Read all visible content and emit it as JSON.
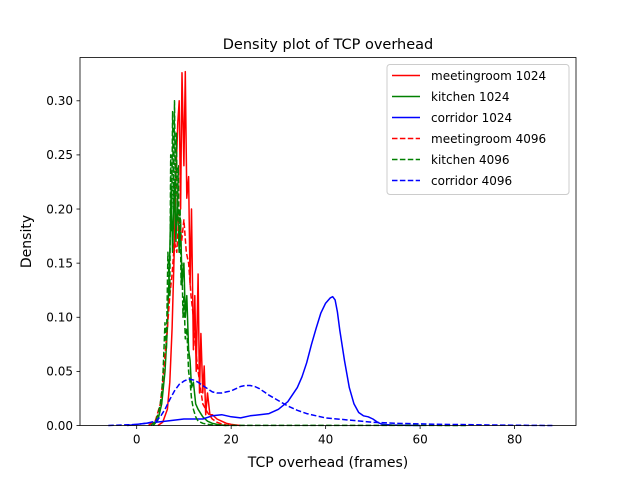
{
  "chart_data": {
    "type": "line",
    "title": "Density plot of TCP overhead",
    "xlabel": "TCP overhead (frames)",
    "ylabel": "Density",
    "xlim": [
      -12,
      93
    ],
    "ylim": [
      0,
      0.34
    ],
    "xticks": [
      0,
      20,
      40,
      60,
      80
    ],
    "yticks": [
      0.0,
      0.05,
      0.1,
      0.15,
      0.2,
      0.25,
      0.3
    ],
    "ytick_labels": [
      "0.00",
      "0.05",
      "0.10",
      "0.15",
      "0.20",
      "0.25",
      "0.30"
    ],
    "grid": false,
    "legend_position": "top-right",
    "series": [
      {
        "name": "meetingroom 1024",
        "color": "#ff0000",
        "style": "solid",
        "x": [
          4.5,
          5.5,
          6.5,
          7,
          7.5,
          8,
          8.3,
          8.7,
          9,
          9.3,
          9.6,
          10,
          10.3,
          10.6,
          11,
          11.3,
          11.6,
          12,
          12.3,
          12.6,
          13,
          13.3,
          13.6,
          14,
          14.3,
          14.6,
          15,
          15.5,
          16,
          17,
          18,
          19,
          20,
          21,
          22
        ],
        "y": [
          0,
          0.003,
          0.015,
          0.04,
          0.09,
          0.17,
          0.23,
          0.28,
          0.3,
          0.2,
          0.326,
          0.24,
          0.327,
          0.21,
          0.23,
          0.13,
          0.2,
          0.07,
          0.12,
          0.05,
          0.14,
          0.03,
          0.085,
          0.03,
          0.055,
          0.01,
          0.03,
          0.01,
          0.01,
          0.006,
          0.004,
          0.002,
          0.001,
          0.0005,
          0
        ]
      },
      {
        "name": "kitchen 1024",
        "color": "#008000",
        "style": "solid",
        "x": [
          3.5,
          4.5,
          5.3,
          6,
          6.5,
          7,
          7.3,
          7.6,
          8,
          8.3,
          8.6,
          9,
          9.3,
          9.6,
          10,
          10.3,
          10.6,
          11,
          11.3,
          11.6,
          12,
          12.5,
          13,
          14,
          15,
          16,
          17,
          18,
          19
        ],
        "y": [
          0,
          0.005,
          0.02,
          0.05,
          0.09,
          0.16,
          0.22,
          0.16,
          0.225,
          0.17,
          0.21,
          0.16,
          0.19,
          0.13,
          0.15,
          0.1,
          0.12,
          0.07,
          0.06,
          0.035,
          0.04,
          0.02,
          0.015,
          0.008,
          0.004,
          0.002,
          0.001,
          0.0005,
          0
        ]
      },
      {
        "name": "corridor 1024",
        "color": "#0000ff",
        "style": "solid",
        "x": [
          -2,
          0,
          2,
          4,
          6,
          8,
          10,
          12,
          14,
          16,
          18,
          20,
          22,
          24,
          26,
          28,
          30,
          32,
          34,
          35,
          36,
          37,
          38,
          39,
          40,
          41,
          41.5,
          42,
          42.5,
          43,
          44,
          45,
          46,
          47,
          48,
          49,
          50,
          51,
          52,
          54,
          56,
          58,
          60
        ],
        "y": [
          0,
          0.001,
          0.002,
          0.003,
          0.004,
          0.005,
          0.006,
          0.006,
          0.006,
          0.009,
          0.01,
          0.008,
          0.007,
          0.009,
          0.01,
          0.011,
          0.015,
          0.022,
          0.035,
          0.045,
          0.058,
          0.075,
          0.09,
          0.104,
          0.113,
          0.118,
          0.119,
          0.116,
          0.105,
          0.088,
          0.06,
          0.035,
          0.02,
          0.012,
          0.009,
          0.008,
          0.006,
          0.003,
          0.001,
          0.0005,
          0.0002,
          0.0001,
          0
        ]
      },
      {
        "name": "meetingroom 4096",
        "color": "#ff0000",
        "style": "dashed",
        "x": [
          2.5,
          4,
          5,
          5.5,
          6,
          6.5,
          7,
          7.5,
          8,
          8.5,
          9,
          9.5,
          10,
          10.5,
          11,
          11.5,
          12,
          12.5,
          13,
          14,
          15,
          16,
          17,
          18,
          19,
          20
        ],
        "y": [
          0,
          0.005,
          0.02,
          0.04,
          0.065,
          0.09,
          0.12,
          0.14,
          0.17,
          0.16,
          0.2,
          0.17,
          0.19,
          0.16,
          0.15,
          0.12,
          0.1,
          0.07,
          0.05,
          0.02,
          0.012,
          0.006,
          0.003,
          0.0015,
          0.0005,
          0
        ]
      },
      {
        "name": "kitchen 4096",
        "color": "#008000",
        "style": "dashed",
        "x": [
          3,
          4,
          4.5,
          5,
          5.3,
          5.6,
          6,
          6.3,
          6.6,
          7,
          7.2,
          7.4,
          7.6,
          7.8,
          8,
          8.2,
          8.4,
          8.6,
          8.8,
          9,
          9.2,
          9.4,
          9.6,
          9.8,
          10,
          10.3,
          10.6,
          11,
          11.3,
          11.6,
          12,
          12.5,
          13,
          14,
          15,
          16,
          17,
          18,
          20,
          30,
          40,
          50,
          60,
          70
        ],
        "y": [
          0,
          0.004,
          0.01,
          0.02,
          0.03,
          0.05,
          0.095,
          0.07,
          0.16,
          0.12,
          0.25,
          0.18,
          0.29,
          0.2,
          0.3,
          0.21,
          0.27,
          0.19,
          0.24,
          0.16,
          0.2,
          0.13,
          0.15,
          0.1,
          0.12,
          0.08,
          0.09,
          0.05,
          0.04,
          0.025,
          0.015,
          0.008,
          0.004,
          0.002,
          0.001,
          0.0006,
          0.0003,
          0.0002,
          0.0001,
          0.0001,
          0.0001,
          0.0001,
          0.0001,
          0
        ]
      },
      {
        "name": "corridor 4096",
        "color": "#0000ff",
        "style": "dashed",
        "x": [
          -6,
          -3,
          0,
          2,
          4,
          5,
          6,
          7,
          8,
          9,
          10,
          11,
          12,
          13,
          14,
          15,
          16,
          17,
          18,
          19,
          20,
          21,
          22,
          23,
          24,
          25,
          26,
          27,
          28,
          30,
          32,
          34,
          36,
          38,
          40,
          45,
          50,
          55,
          60,
          65,
          70,
          75,
          80,
          85,
          88
        ],
        "y": [
          0,
          0.0005,
          0.001,
          0.002,
          0.004,
          0.008,
          0.015,
          0.024,
          0.032,
          0.038,
          0.041,
          0.043,
          0.042,
          0.04,
          0.037,
          0.034,
          0.031,
          0.03,
          0.03,
          0.031,
          0.032,
          0.034,
          0.036,
          0.037,
          0.037,
          0.036,
          0.034,
          0.031,
          0.028,
          0.023,
          0.018,
          0.014,
          0.011,
          0.009,
          0.007,
          0.005,
          0.003,
          0.002,
          0.0015,
          0.001,
          0.0008,
          0.0005,
          0.0003,
          0.0001,
          0
        ]
      }
    ]
  }
}
